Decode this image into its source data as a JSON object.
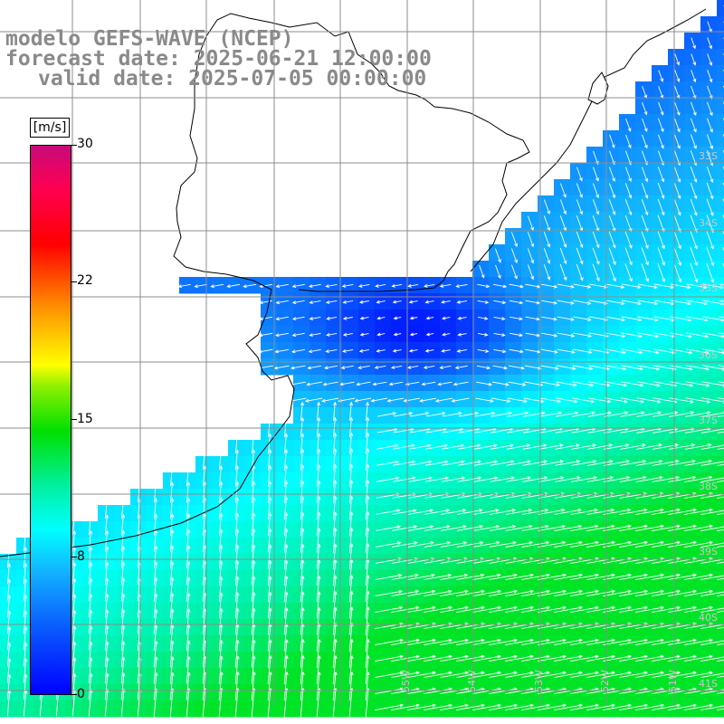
{
  "header": {
    "line1": "modelo GEFS-WAVE (NCEP)",
    "line2": "forecast date: 2025-06-21 12:00:00",
    "line3": "valid date: 2025-07-05 00:00:00"
  },
  "colorbar": {
    "unit": "[m/s]",
    "labels": [
      "30",
      "22",
      "15",
      "8",
      "0"
    ],
    "range": [
      0,
      30
    ],
    "colors": [
      "#0000ff",
      "#00ffff",
      "#00e000",
      "#ffff00",
      "#ff0000",
      "#c80a7a"
    ]
  },
  "grid": {
    "lon_labels": [
      "55W",
      "54W",
      "53W",
      "52W",
      "51W"
    ],
    "lat_labels": [
      "33S",
      "34S",
      "35S",
      "36S",
      "37S",
      "38S",
      "39S",
      "40S",
      "41S"
    ]
  },
  "map_colors": {
    "land": "#ffffff",
    "coast": "#000000",
    "grid": "#8c8c8c",
    "arrow": "#ffffff"
  }
}
